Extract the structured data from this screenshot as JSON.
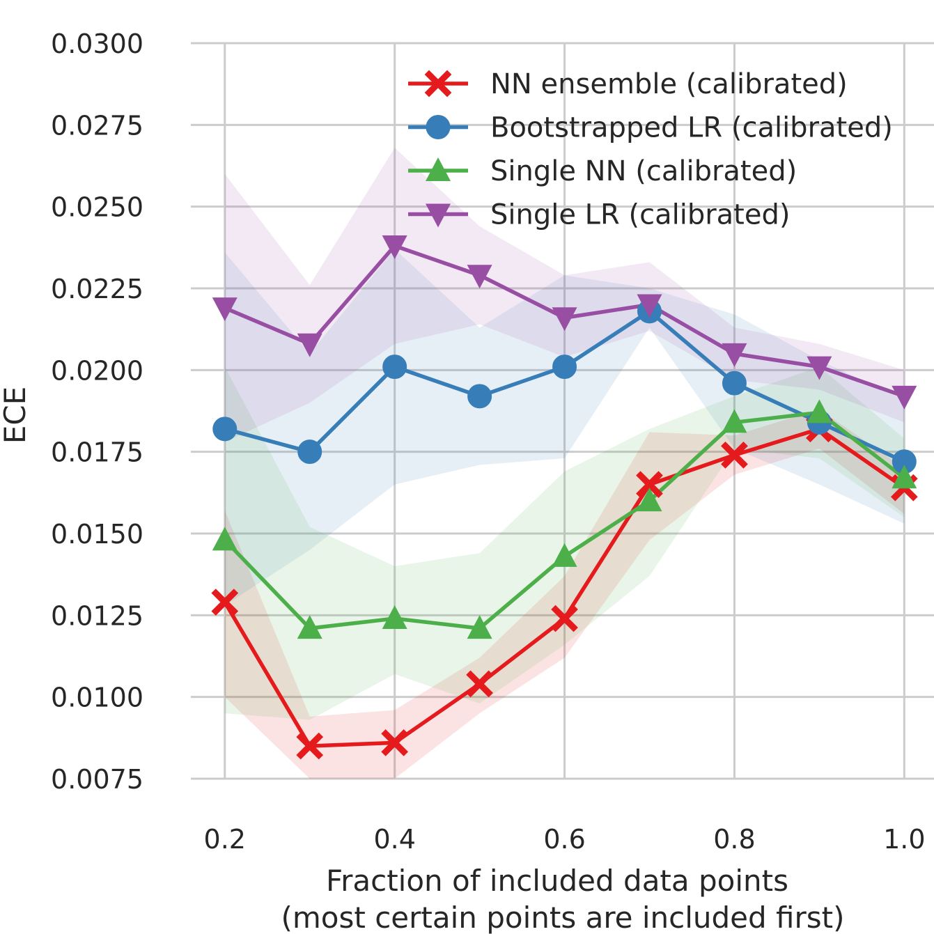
{
  "chart_data": {
    "type": "line",
    "xlabel_line1": "Fraction of included data points",
    "xlabel_line2": "(most certain points are included first)",
    "ylabel": "ECE",
    "x": [
      0.2,
      0.3,
      0.4,
      0.5,
      0.6,
      0.7,
      0.8,
      0.9,
      1.0
    ],
    "xlim": [
      0.16,
      1.035
    ],
    "ylim": [
      0.0075,
      0.03
    ],
    "x_ticks": [
      "0.2",
      "0.4",
      "0.6",
      "0.8",
      "1.0"
    ],
    "y_ticks": [
      "0.0075",
      "0.0100",
      "0.0125",
      "0.0150",
      "0.0175",
      "0.0200",
      "0.0225",
      "0.0250",
      "0.0275",
      "0.0300"
    ],
    "grid": true,
    "legend_position": "top-right",
    "series": [
      {
        "name": "NN ensemble (calibrated)",
        "color": "#e41a1c",
        "marker": "x",
        "values": [
          0.0129,
          0.0085,
          0.0086,
          0.0104,
          0.0124,
          0.0165,
          0.0174,
          0.0182,
          0.0164
        ],
        "lower": [
          0.01,
          0.0075,
          0.0075,
          0.0095,
          0.0112,
          0.0148,
          0.0168,
          0.0176,
          0.0156
        ],
        "upper": [
          0.0157,
          0.0094,
          0.0096,
          0.0112,
          0.0137,
          0.0181,
          0.018,
          0.0188,
          0.017
        ]
      },
      {
        "name": "Bootstrapped LR (calibrated)",
        "color": "#377eb8",
        "marker": "o",
        "values": [
          0.0182,
          0.0175,
          0.0201,
          0.0192,
          0.0201,
          0.0218,
          0.0196,
          0.0184,
          0.0172
        ],
        "lower": [
          0.0128,
          0.0145,
          0.0165,
          0.0171,
          0.0173,
          0.0213,
          0.0176,
          0.0165,
          0.0153
        ],
        "upper": [
          0.0236,
          0.0205,
          0.0237,
          0.0213,
          0.0229,
          0.0225,
          0.0217,
          0.0203,
          0.0191
        ]
      },
      {
        "name": "Single NN (calibrated)",
        "color": "#4daf4a",
        "marker": "^",
        "values": [
          0.0148,
          0.0121,
          0.0124,
          0.0121,
          0.0143,
          0.016,
          0.0184,
          0.0187,
          0.0167
        ],
        "lower": [
          0.0095,
          0.0093,
          0.0107,
          0.0098,
          0.0116,
          0.0137,
          0.0176,
          0.0173,
          0.0155
        ],
        "upper": [
          0.0201,
          0.0152,
          0.014,
          0.0144,
          0.0169,
          0.0182,
          0.0192,
          0.0201,
          0.0179
        ]
      },
      {
        "name": "Single LR (calibrated)",
        "color": "#984ea3",
        "marker": "v",
        "values": [
          0.0219,
          0.0208,
          0.0238,
          0.0229,
          0.0216,
          0.022,
          0.0205,
          0.0201,
          0.0192
        ],
        "lower": [
          0.0178,
          0.019,
          0.0208,
          0.0214,
          0.0204,
          0.0212,
          0.0197,
          0.0194,
          0.0184
        ],
        "upper": [
          0.026,
          0.0226,
          0.0268,
          0.0244,
          0.0229,
          0.0233,
          0.0213,
          0.0208,
          0.02
        ]
      }
    ]
  }
}
